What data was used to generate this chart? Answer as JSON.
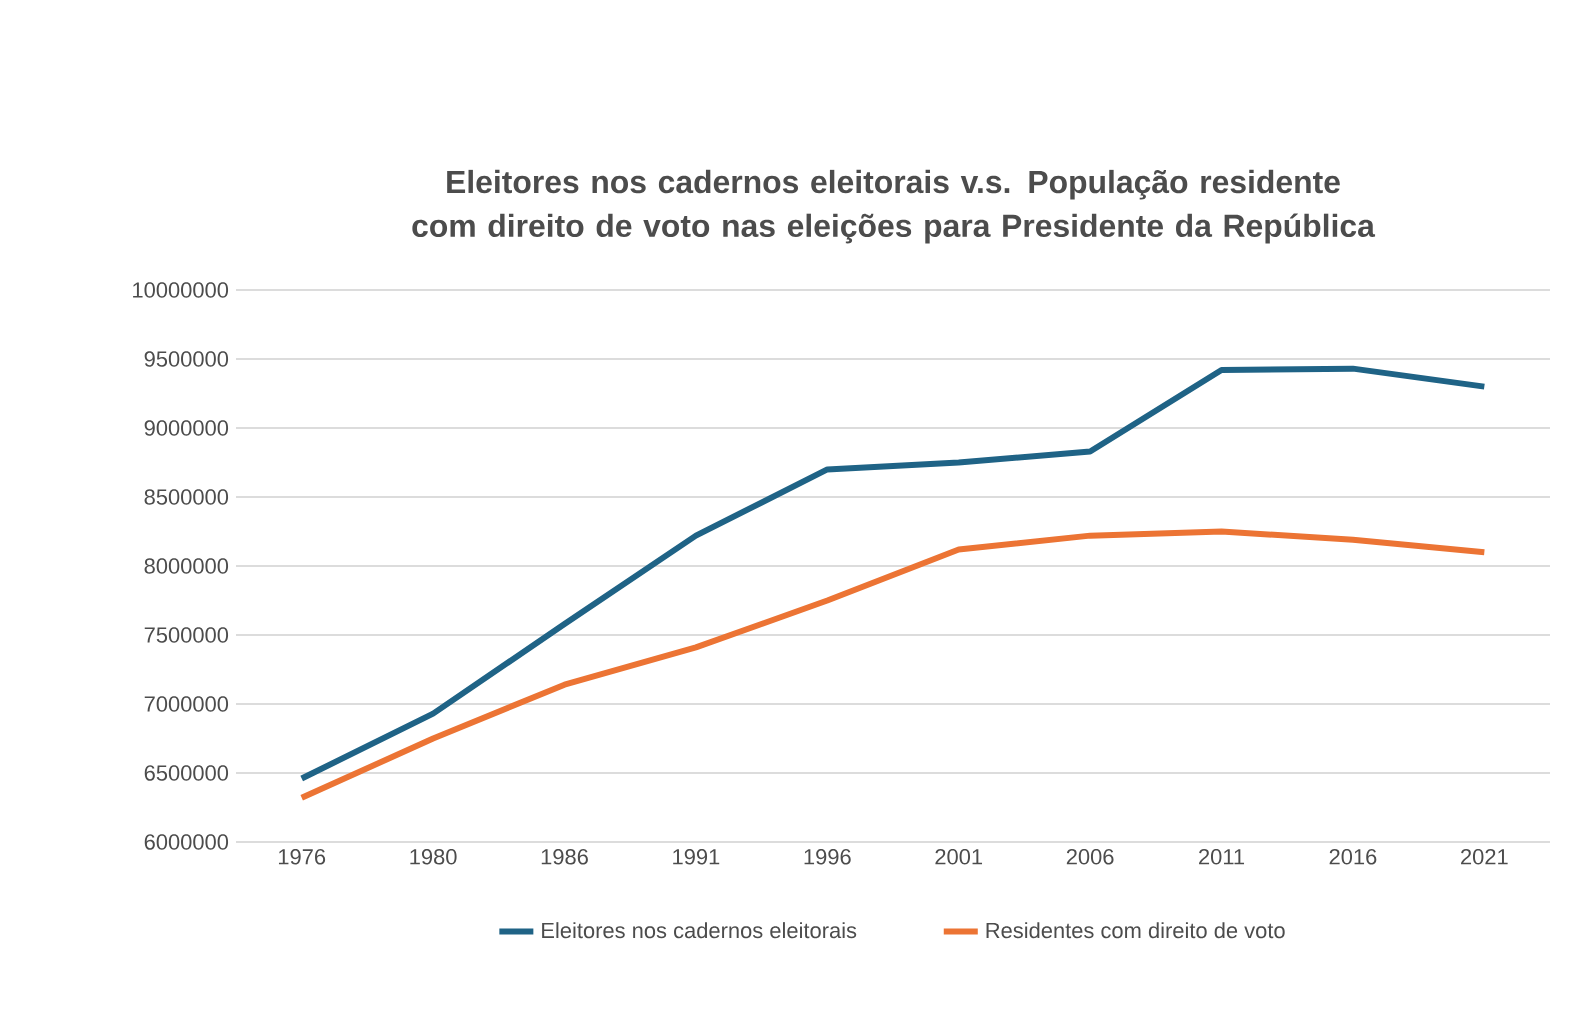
{
  "chart_data": {
    "type": "line",
    "title": "Eleitores nos cadernos eleitorais v.s. População residente com direito de voto nas eleições para Presidente da República",
    "categories": [
      "1976",
      "1980",
      "1986",
      "1991",
      "1996",
      "2001",
      "2006",
      "2011",
      "2016",
      "2021"
    ],
    "series": [
      {
        "name": "Eleitores nos cadernos eleitorais",
        "color": "#1f6386",
        "values": [
          6460000,
          6930000,
          7580000,
          8220000,
          8700000,
          8750000,
          8830000,
          9420000,
          9430000,
          9300000
        ]
      },
      {
        "name": "Residentes com direito de voto",
        "color": "#ec7434",
        "values": [
          6320000,
          6750000,
          7140000,
          7410000,
          7750000,
          8120000,
          8220000,
          8250000,
          8190000,
          8100000
        ]
      }
    ],
    "ylim": [
      6000000,
      10000000
    ],
    "yticks": [
      6000000,
      6500000,
      7000000,
      7500000,
      8000000,
      8500000,
      9000000,
      9500000,
      10000000
    ],
    "grid": "y",
    "legend": "bottom"
  }
}
